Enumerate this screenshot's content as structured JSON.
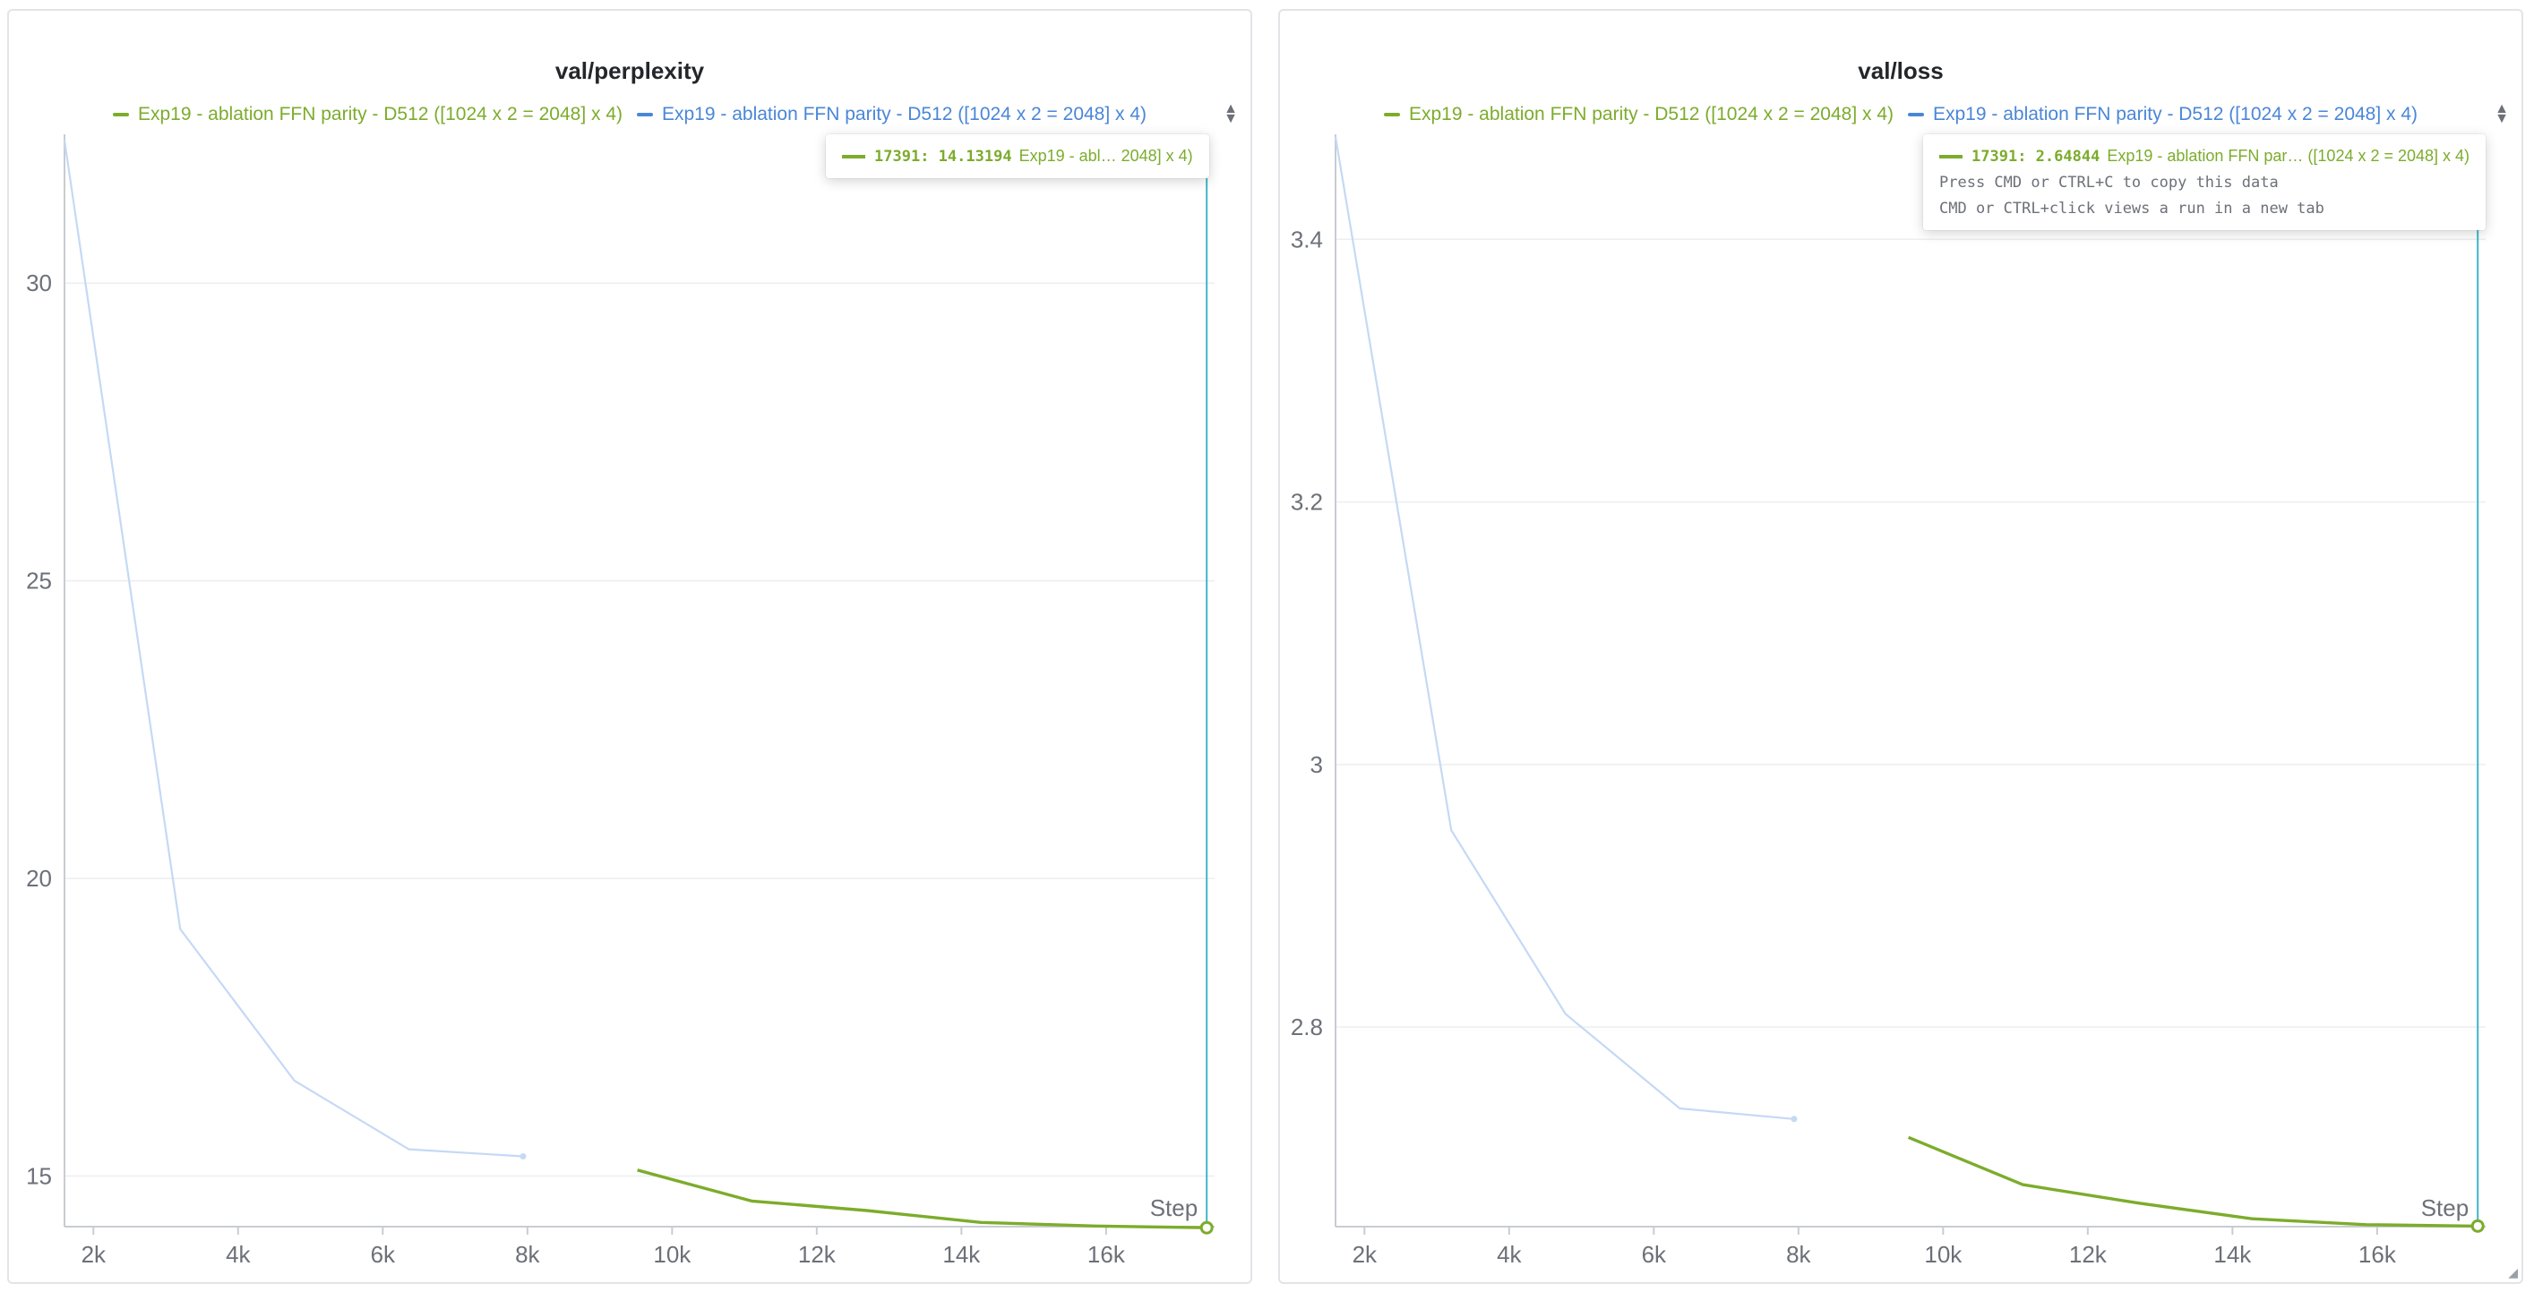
{
  "charts": [
    {
      "title": "val/perplexity",
      "legend": [
        {
          "label": "Exp19 - ablation FFN parity - D512 ([1024 x 2 = 2048] x 4)",
          "color": "#7cac2c"
        },
        {
          "label": "Exp19 - ablation FFN parity - D512 ([1024 x 2 = 2048] x 4)",
          "color": "#4a86d8"
        }
      ],
      "tooltip": {
        "step": "17391",
        "value": "14.13194",
        "run": "Exp19 - abl… 2048] x 4)",
        "hints": []
      },
      "x_axis_label": "Step",
      "x_ticks": [
        "2k",
        "4k",
        "6k",
        "8k",
        "10k",
        "12k",
        "14k",
        "16k"
      ],
      "y_ticks": [
        "15",
        "20",
        "25",
        "30"
      ]
    },
    {
      "title": "val/loss",
      "legend": [
        {
          "label": "Exp19 - ablation FFN parity - D512 ([1024 x 2 = 2048] x 4)",
          "color": "#7cac2c"
        },
        {
          "label": "Exp19 - ablation FFN parity - D512 ([1024 x 2 = 2048] x 4)",
          "color": "#4a86d8"
        }
      ],
      "tooltip": {
        "step": "17391",
        "value": "2.64844",
        "run": "Exp19 - ablation FFN par… ([1024 x 2 = 2048] x 4)",
        "hints": [
          "Press CMD or CTRL+C to copy this data",
          "CMD or CTRL+click views a run in a new tab"
        ]
      },
      "x_axis_label": "Step",
      "x_ticks": [
        "2k",
        "4k",
        "6k",
        "8k",
        "10k",
        "12k",
        "14k",
        "16k"
      ],
      "y_ticks": [
        "2.8",
        "3",
        "3.2",
        "3.4"
      ]
    }
  ],
  "chart_data": [
    {
      "type": "line",
      "title": "val/perplexity",
      "xlabel": "Step",
      "ylabel": "",
      "xlim": [
        1600,
        17500
      ],
      "ylim": [
        14.15,
        32.5
      ],
      "x_ticks": [
        2000,
        4000,
        6000,
        8000,
        10000,
        12000,
        14000,
        16000
      ],
      "y_ticks": [
        15,
        20,
        25,
        30
      ],
      "hover_x": 17391,
      "grid": true,
      "legend_position": "top",
      "series": [
        {
          "color": "#4a86d8",
          "line_color": "#c5d9f5",
          "x": [
            1600,
            3200,
            4780,
            6360,
            7940
          ],
          "y": [
            32.4,
            19.15,
            16.6,
            15.45,
            15.33
          ]
        },
        {
          "color": "#7cac2c",
          "line_color": "#7cac2c",
          "x": [
            9520,
            11100,
            12690,
            14270,
            15850,
            17391
          ],
          "y": [
            15.1,
            14.58,
            14.42,
            14.22,
            14.16,
            14.13194
          ]
        }
      ]
    },
    {
      "type": "line",
      "title": "val/loss",
      "xlabel": "Step",
      "ylabel": "",
      "xlim": [
        1600,
        17500
      ],
      "ylim": [
        2.648,
        3.48
      ],
      "x_ticks": [
        2000,
        4000,
        6000,
        8000,
        10000,
        12000,
        14000,
        16000
      ],
      "y_ticks": [
        2.8,
        3.0,
        3.2,
        3.4
      ],
      "hover_x": 17391,
      "grid": true,
      "legend_position": "top",
      "series": [
        {
          "color": "#4a86d8",
          "line_color": "#c5d9f5",
          "x": [
            1600,
            3200,
            4780,
            6360,
            7940
          ],
          "y": [
            3.478,
            2.95,
            2.81,
            2.738,
            2.73
          ]
        },
        {
          "color": "#7cac2c",
          "line_color": "#7cac2c",
          "x": [
            9520,
            11100,
            12690,
            14270,
            15850,
            17391
          ],
          "y": [
            2.716,
            2.68,
            2.666,
            2.654,
            2.6495,
            2.64844
          ]
        }
      ]
    }
  ]
}
